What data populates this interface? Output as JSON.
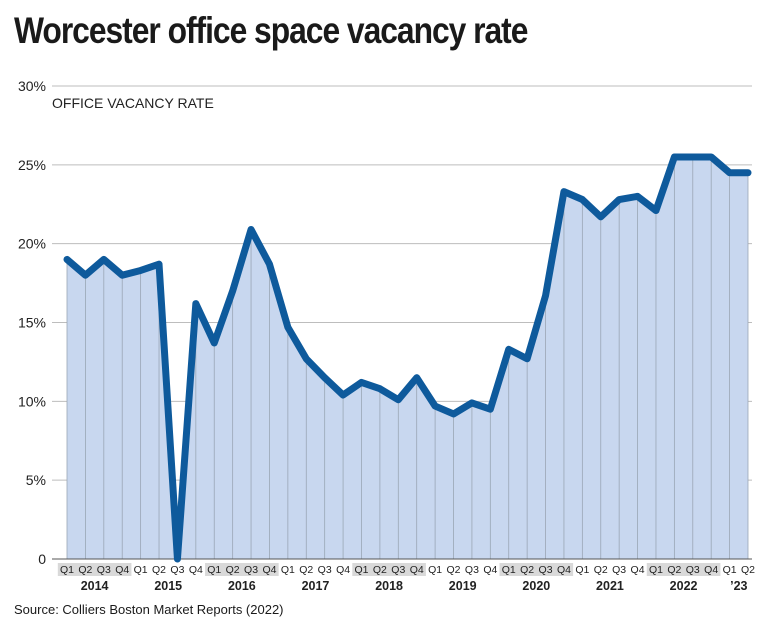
{
  "title": "Worcester office space vacancy rate",
  "source": "Source: Colliers Boston Market Reports (2022)",
  "chart_data": {
    "type": "area",
    "subtitle": "OFFICE VACANCY RATE",
    "ylim": [
      0,
      30
    ],
    "yticks": [
      0,
      5,
      10,
      15,
      20,
      25,
      30
    ],
    "ytick_labels": [
      "0",
      "5%",
      "10%",
      "15%",
      "20%",
      "25%",
      "30%"
    ],
    "grid": true,
    "line_color": "#0e5a9c",
    "fill_color": "#c8d7ef",
    "x": [
      "2014 Q1",
      "2014 Q2",
      "2014 Q3",
      "2014 Q4",
      "2015 Q1",
      "2015 Q2",
      "2015 Q3",
      "2015 Q4",
      "2016 Q1",
      "2016 Q2",
      "2016 Q3",
      "2016 Q4",
      "2017 Q1",
      "2017 Q2",
      "2017 Q3",
      "2017 Q4",
      "2018 Q1",
      "2018 Q2",
      "2018 Q3",
      "2018 Q4",
      "2019 Q1",
      "2019 Q2",
      "2019 Q3",
      "2019 Q4",
      "2020 Q1",
      "2020 Q2",
      "2020 Q3",
      "2020 Q4",
      "2021 Q1",
      "2021 Q2",
      "2021 Q3",
      "2021 Q4",
      "2022 Q1",
      "2022 Q2",
      "2022 Q3",
      "2022 Q4",
      "2023 Q1",
      "2023 Q2"
    ],
    "series": [
      {
        "values": [
          19.0,
          18.0,
          19.0,
          18.0,
          18.3,
          18.7,
          0.0,
          16.2,
          13.7,
          17.0,
          20.9,
          18.7,
          14.7,
          12.7,
          11.5,
          10.4,
          11.2,
          10.8,
          10.1,
          11.5,
          9.7,
          9.2,
          9.9,
          9.5,
          13.3,
          12.7,
          16.7,
          23.3,
          22.8,
          21.7,
          22.8,
          23.0,
          22.1,
          25.5,
          25.5,
          25.5,
          24.5,
          24.5
        ]
      }
    ],
    "quarter_labels": [
      "Q1",
      "Q2",
      "Q3",
      "Q4",
      "Q1",
      "Q2",
      "Q3",
      "Q4",
      "Q1",
      "Q2",
      "Q3",
      "Q4",
      "Q1",
      "Q2",
      "Q3",
      "Q4",
      "Q1",
      "Q2",
      "Q3",
      "Q4",
      "Q1",
      "Q2",
      "Q3",
      "Q4",
      "Q1",
      "Q2",
      "Q3",
      "Q4",
      "Q1",
      "Q2",
      "Q3",
      "Q4",
      "Q1",
      "Q2",
      "Q3",
      "Q4",
      "Q1",
      "Q2"
    ],
    "year_labels": [
      "2014",
      "2015",
      "2016",
      "2017",
      "2018",
      "2019",
      "2020",
      "2021",
      "2022",
      "’23"
    ]
  }
}
